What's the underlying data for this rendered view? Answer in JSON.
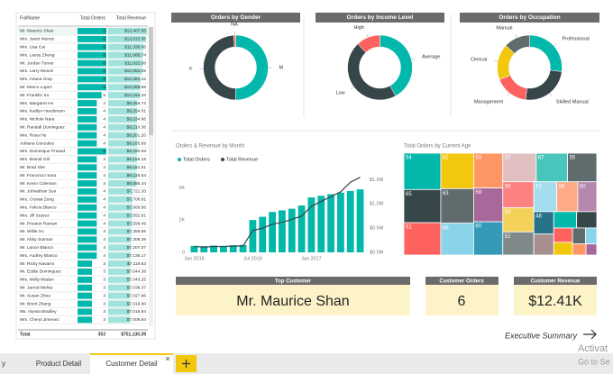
{
  "table": {
    "columns": [
      "FullName",
      "Total Orders",
      "Total Revenue"
    ],
    "rows": [
      {
        "name": "Mr. Maurice Shan",
        "orders": 6,
        "revenue": 12407.95,
        "revenue_label": "$12,407.95"
      },
      {
        "name": "Mrs. Janet Munoz",
        "orders": 6,
        "revenue": 12015.35,
        "revenue_label": "$12,015.35"
      },
      {
        "name": "Mrs. Lisa Cai",
        "orders": 6,
        "revenue": 11330.45,
        "revenue_label": "$11,330.45"
      },
      {
        "name": "Mrs. Lacey Zheng",
        "orders": 6,
        "revenue": 11085.74,
        "revenue_label": "$11,085.74"
      },
      {
        "name": "Mr. Jordan Turner",
        "orders": 6,
        "revenue": 11022.38,
        "revenue_label": "$11,022.38"
      },
      {
        "name": "Mrs. Larry Munoz",
        "orders": 6,
        "revenue": 10852.06,
        "revenue_label": "$10,852.06"
      },
      {
        "name": "Mrs. Ariana Gray",
        "orders": 6,
        "revenue": 10391.42,
        "revenue_label": "$10,391.42"
      },
      {
        "name": "Mr. Marco Lopez",
        "orders": 6,
        "revenue": 10289.68,
        "revenue_label": "$10,289.68"
      },
      {
        "name": "Mr. Franklin Xu",
        "orders": 5,
        "revenue": 10164.34,
        "revenue_label": "$10,164.34"
      },
      {
        "name": "Mrs. Margaret He",
        "orders": 4,
        "revenue": 9266.74,
        "revenue_label": "$9,266.74"
      },
      {
        "name": "Mrs. Kaitlyn Henderson",
        "orders": 4,
        "revenue": 9254.01,
        "revenue_label": "$9,254.01"
      },
      {
        "name": "Mrs. Nichole Nara",
        "orders": 4,
        "revenue": 9234.66,
        "revenue_label": "$9,234.66"
      },
      {
        "name": "Mr. Randall Dominguez",
        "orders": 4,
        "revenue": 9210.36,
        "revenue_label": "$9,210.36"
      },
      {
        "name": "Mrs. Rosa Hu",
        "orders": 4,
        "revenue": 9201.2,
        "revenue_label": "$9,201.20"
      },
      {
        "name": "Adriana Gonzalez",
        "orders": 4,
        "revenue": 9185.69,
        "revenue_label": "$9,185.69"
      },
      {
        "name": "Mrs. Dominique Prasad",
        "orders": 6,
        "revenue": 9180.93,
        "revenue_label": "$9,180.93"
      },
      {
        "name": "Mrs. Brandi Gill",
        "orders": 4,
        "revenue": 9166.18,
        "revenue_label": "$9,166.18"
      },
      {
        "name": "Mr. Brad She",
        "orders": 4,
        "revenue": 9161.01,
        "revenue_label": "$9,161.01"
      },
      {
        "name": "Mr. Francisco Sara",
        "orders": 4,
        "revenue": 9125.54,
        "revenue_label": "$9,125.54"
      },
      {
        "name": "Mr. Kevin Coleman",
        "orders": 4,
        "revenue": 9085.44,
        "revenue_label": "$9,085.44"
      },
      {
        "name": "Mr. Johnathan Sun",
        "orders": 4,
        "revenue": 7721.33,
        "revenue_label": "$7,721.33"
      },
      {
        "name": "Mrs. Crystal Zeng",
        "orders": 4,
        "revenue": 7706.81,
        "revenue_label": "$7,706.81"
      },
      {
        "name": "Mrs. Felicia Blanco",
        "orders": 4,
        "revenue": 7669.66,
        "revenue_label": "$7,669.66"
      },
      {
        "name": "Mrs. Jill Suarez",
        "orders": 4,
        "revenue": 7652.61,
        "revenue_label": "$7,652.61"
      },
      {
        "name": "Mr. Preston Raman",
        "orders": 4,
        "revenue": 7599.49,
        "revenue_label": "$7,599.49"
      },
      {
        "name": "Mr. Willie Xu",
        "orders": 4,
        "revenue": 7355.55,
        "revenue_label": "$7,355.55"
      },
      {
        "name": "Mr. Abby Sutman",
        "orders": 4,
        "revenue": 7308.39,
        "revenue_label": "$7,308.39"
      },
      {
        "name": "Mr. Lance Blanco",
        "orders": 4,
        "revenue": 7207.07,
        "revenue_label": "$7,207.07"
      },
      {
        "name": "Mrs. Audrey Blanco",
        "orders": 4,
        "revenue": 7136.17,
        "revenue_label": "$7,136.17"
      },
      {
        "name": "Mr. Ricky Navarro",
        "orders": 3,
        "revenue": 7119.63,
        "revenue_label": "$7,119.63"
      },
      {
        "name": "Mr. Eddie Dominguez",
        "orders": 3,
        "revenue": 7044.38,
        "revenue_label": "$7,044.38"
      },
      {
        "name": "Mrs. Molly Madan",
        "orders": 3,
        "revenue": 7043.25,
        "revenue_label": "$7,043.25"
      },
      {
        "name": "Mr. Jarrod Mehta",
        "orders": 3,
        "revenue": 7038.37,
        "revenue_label": "$7,038.37"
      },
      {
        "name": "Mr. Susan Zhou",
        "orders": 3,
        "revenue": 7027.96,
        "revenue_label": "$7,027.96"
      },
      {
        "name": "Mr. Brent Zhang",
        "orders": 3,
        "revenue": 7018.9,
        "revenue_label": "$7,018.90"
      },
      {
        "name": "Ms. Alyssa Bradley",
        "orders": 3,
        "revenue": 7018.84,
        "revenue_label": "$7,018.84"
      },
      {
        "name": "Mrs. Cheryl Jimenez",
        "orders": 3,
        "revenue": 7009.84,
        "revenue_label": "$7,009.84"
      }
    ],
    "total": {
      "name": "Total",
      "orders": 353,
      "revenue_label": "$751,130.39"
    },
    "color": "#01b8aa",
    "revenue_color": "#9fe3dc"
  },
  "chart_data": [
    {
      "type": "donut",
      "title": "Orders by Gender",
      "categories": [
        "M",
        "F",
        "NA"
      ],
      "values": [
        50,
        49,
        1
      ],
      "colors": [
        "#01b8aa",
        "#374649",
        "#fd625e"
      ]
    },
    {
      "type": "donut",
      "title": "Orders by Income Level",
      "categories": [
        "Average",
        "Low",
        "High"
      ],
      "values": [
        42,
        46,
        12
      ],
      "colors": [
        "#01b8aa",
        "#374649",
        "#fd625e"
      ]
    },
    {
      "type": "donut",
      "title": "Orders by Occupation",
      "categories": [
        "Professional",
        "Skilled Manual",
        "Management",
        "Clerical",
        "Manual"
      ],
      "values": [
        27,
        25,
        17,
        18,
        13
      ],
      "colors": [
        "#01b8aa",
        "#374649",
        "#fd625e",
        "#f2c80f",
        "#5f6b6d"
      ]
    },
    {
      "type": "combo",
      "title": "Orders & Revenue by Month",
      "categories": [
        "Jan 2016",
        null,
        null,
        null,
        null,
        null,
        "Jul 2016",
        null,
        null,
        null,
        null,
        null,
        "Jan 2017",
        null,
        null,
        null,
        null,
        null
      ],
      "series": [
        {
          "name": "Total Orders",
          "color": "#01b8aa",
          "type": "bar",
          "values": [
            200,
            190,
            210,
            200,
            220,
            230,
            1000,
            1100,
            1250,
            1300,
            1350,
            1450,
            1700,
            1750,
            1800,
            1850,
            1900,
            1950
          ]
        },
        {
          "name": "Total Revenue",
          "color": "#374649",
          "type": "line",
          "axis": "y2",
          "values": [
            0.12,
            0.11,
            0.12,
            0.12,
            0.13,
            0.13,
            0.45,
            0.5,
            0.58,
            0.62,
            0.68,
            0.75,
            0.95,
            1.05,
            1.15,
            1.25,
            1.45,
            1.55
          ]
        }
      ],
      "ylim": [
        0,
        2400
      ],
      "yticks": [
        {
          "value": 0,
          "label": "0"
        },
        {
          "value": 1000,
          "label": "1K"
        },
        {
          "value": 2000,
          "label": "2K"
        }
      ],
      "y2lim": [
        0,
        1.6
      ],
      "y2ticks": [
        {
          "value": 0,
          "label": "$0.0M"
        },
        {
          "value": 0.5,
          "label": "$0.5M"
        },
        {
          "value": 1,
          "label": "$1.0M"
        },
        {
          "value": 1.5,
          "label": "$1.5M"
        }
      ]
    },
    {
      "type": "treemap",
      "title": "Total Orders by Current Age",
      "categories": [
        "54",
        "65",
        "61",
        "62",
        "63",
        "66",
        "53",
        "58",
        "60",
        "57",
        "67",
        "55",
        "56",
        "59",
        "52",
        "51",
        "68",
        "50",
        "48",
        null,
        null,
        null,
        null,
        null,
        null,
        null,
        null,
        null
      ],
      "values": [
        900,
        820,
        800,
        780,
        760,
        700,
        680,
        660,
        650,
        640,
        600,
        560,
        540,
        500,
        480,
        460,
        420,
        380,
        300,
        280,
        250,
        220,
        180,
        160,
        140,
        120,
        100,
        80
      ],
      "colors": [
        "#01b8aa",
        "#374649",
        "#fd625e",
        "#f2c80f",
        "#5f6b6d",
        "#8ad4eb",
        "#fe9666",
        "#a66999",
        "#3599b8",
        "#dfbfbf",
        "#4ac5bb",
        "#5f6b6d",
        "#fb8281",
        "#f4d25a",
        "#7f898a",
        "#a4ddee",
        "#fdab89",
        "#b687ac",
        "#28738a",
        "#a78f8f",
        "#01b8aa",
        "#374649",
        "#fd625e",
        "#f2c80f",
        "#5f6b6d",
        "#8ad4eb",
        "#fe9666",
        "#a66999"
      ]
    }
  ],
  "cards": [
    {
      "title": "Top Customer",
      "value": "Mr. Maurice Shan"
    },
    {
      "title": "Customer Orders",
      "value": 6
    },
    {
      "title": "Customer Revenue",
      "value": "$12.41K"
    }
  ],
  "nav": "Executive Summary",
  "tabs": [
    "y",
    "Product Detail",
    "Customer Detail"
  ],
  "watermark": [
    "Activat",
    "Go to Se"
  ]
}
